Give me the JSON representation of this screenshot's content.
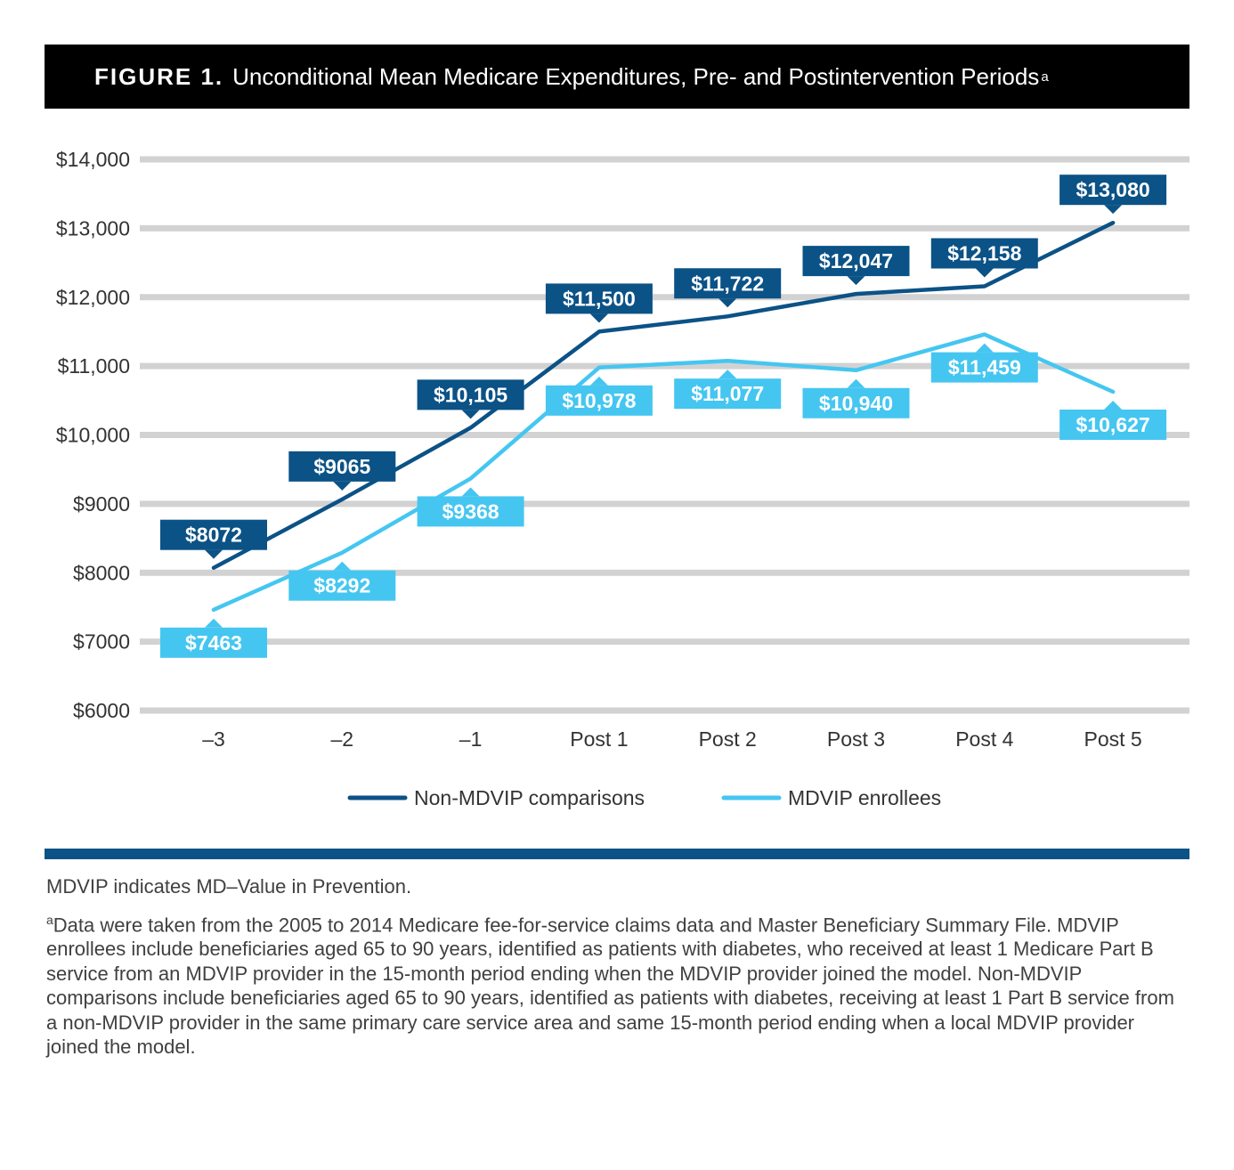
{
  "title": {
    "figure_label": "FIGURE 1.",
    "text": "Unconditional Mean Medicare Expenditures, Pre- and Postintervention Periods",
    "superscript": "a"
  },
  "colors": {
    "non_mdvip": "#0b5286",
    "mdvip": "#45c6f1",
    "grid": "#d2d2d2"
  },
  "chart_data": {
    "type": "line",
    "title": "Unconditional Mean Medicare Expenditures, Pre- and Postintervention Periods",
    "xlabel": "",
    "ylabel": "",
    "categories": [
      "–3",
      "–2",
      "–1",
      "Post 1",
      "Post 2",
      "Post 3",
      "Post 4",
      "Post 5"
    ],
    "ylim": [
      6000,
      14000
    ],
    "yticks": [
      6000,
      7000,
      8000,
      9000,
      10000,
      11000,
      12000,
      13000,
      14000
    ],
    "ytick_labels": [
      "$6000",
      "$7000",
      "$8000",
      "$9000",
      "$10,000",
      "$11,000",
      "$12,000",
      "$13,000",
      "$14,000"
    ],
    "grid": true,
    "legend": "bottom-center",
    "series": [
      {
        "name": "Non-MDVIP comparisons",
        "values": [
          8072,
          9065,
          10105,
          11500,
          11722,
          12047,
          12158,
          13080
        ],
        "labels": [
          "$8072",
          "$9065",
          "$10,105",
          "$11,500",
          "$11,722",
          "$12,047",
          "$12,158",
          "$13,080"
        ]
      },
      {
        "name": "MDVIP enrollees",
        "values": [
          7463,
          8292,
          9368,
          10978,
          11077,
          10940,
          11459,
          10627
        ],
        "labels": [
          "$7463",
          "$8292",
          "$9368",
          "$10,978",
          "$11,077",
          "$10,940",
          "$11,459",
          "$10,627"
        ]
      }
    ]
  },
  "notes": {
    "abbreviation": "MDVIP indicates MD–Value in Prevention.",
    "footnote_marker": "a",
    "footnote": "Data were taken from the 2005 to 2014 Medicare fee-for-service claims data and Master Beneficiary Summary File. MDVIP enrollees include beneficiaries aged 65 to 90 years, identified as patients with diabetes, who received at least 1 Medicare Part B service from an MDVIP provider in the 15-month period ending when the MDVIP provider joined the model. Non-MDVIP comparisons include beneficiaries aged 65 to 90 years, identified as patients with diabetes, receiving at least 1 Part B service from a non-MDVIP provider in the same primary care service area and same 15-month period ending when a local MDVIP provider joined the model."
  }
}
